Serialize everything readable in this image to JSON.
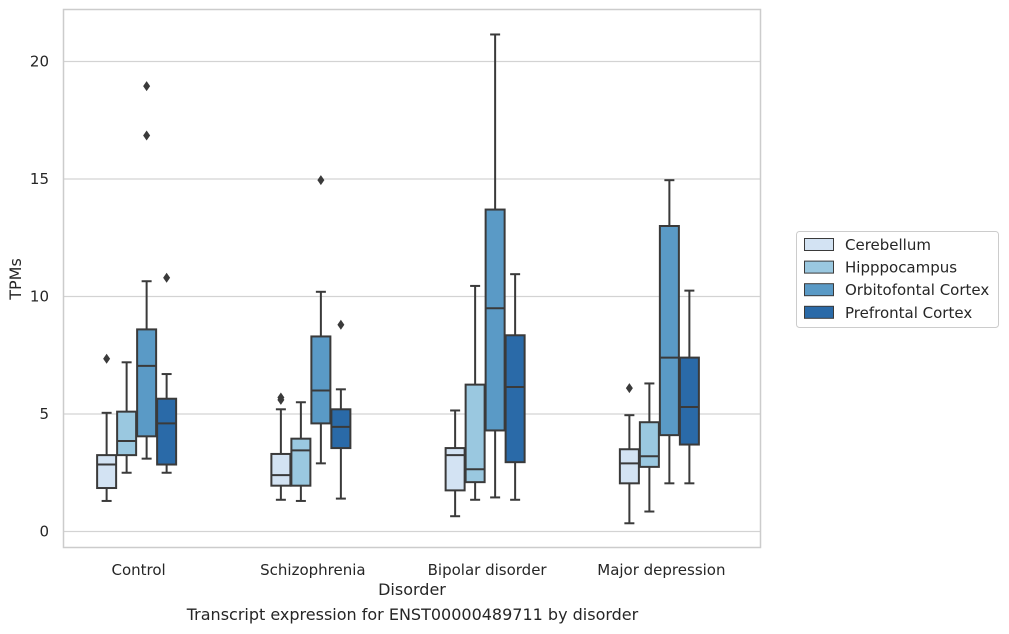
{
  "caption": "Transcript expression for ENST00000489711 by disorder",
  "chart_data": {
    "type": "boxplot",
    "xlabel": "Disorder",
    "ylabel": "TPMs",
    "ylim": [
      -0.7,
      22.3
    ],
    "yticks": [
      0,
      5,
      10,
      15,
      20
    ],
    "grid": "horizontal",
    "legend_position": "right",
    "categories": [
      "Control",
      "Schizophrenia",
      "Bipolar disorder",
      "Major depression"
    ],
    "series": [
      {
        "name": "Cerebellum",
        "color": "#d3e3f3",
        "boxes": [
          {
            "whislo": 1.3,
            "q1": 1.85,
            "med": 2.85,
            "q3": 3.25,
            "whishi": 5.05,
            "fliers": [
              7.35
            ]
          },
          {
            "whislo": 1.35,
            "q1": 1.95,
            "med": 2.4,
            "q3": 3.3,
            "whishi": 5.2,
            "fliers": [
              5.6,
              5.7
            ]
          },
          {
            "whislo": 0.65,
            "q1": 1.75,
            "med": 3.25,
            "q3": 3.55,
            "whishi": 5.15,
            "fliers": []
          },
          {
            "whislo": 0.35,
            "q1": 2.05,
            "med": 2.9,
            "q3": 3.5,
            "whishi": 4.95,
            "fliers": [
              6.1
            ]
          }
        ]
      },
      {
        "name": "Hipppocampus",
        "color": "#9ac8e0",
        "boxes": [
          {
            "whislo": 2.5,
            "q1": 3.25,
            "med": 3.85,
            "q3": 5.1,
            "whishi": 7.2,
            "fliers": []
          },
          {
            "whislo": 1.3,
            "q1": 1.95,
            "med": 3.45,
            "q3": 3.95,
            "whishi": 5.5,
            "fliers": []
          },
          {
            "whislo": 1.35,
            "q1": 2.1,
            "med": 2.65,
            "q3": 6.25,
            "whishi": 10.45,
            "fliers": []
          },
          {
            "whislo": 0.85,
            "q1": 2.75,
            "med": 3.2,
            "q3": 4.65,
            "whishi": 6.3,
            "fliers": []
          }
        ]
      },
      {
        "name": "Orbitofontal Cortex",
        "color": "#5a9ac6",
        "boxes": [
          {
            "whislo": 3.1,
            "q1": 4.05,
            "med": 7.05,
            "q3": 8.6,
            "whishi": 10.65,
            "fliers": [
              16.85,
              18.95
            ]
          },
          {
            "whislo": 2.9,
            "q1": 4.6,
            "med": 6.0,
            "q3": 8.3,
            "whishi": 10.2,
            "fliers": [
              14.95
            ]
          },
          {
            "whislo": 1.45,
            "q1": 4.3,
            "med": 9.5,
            "q3": 13.7,
            "whishi": 21.15,
            "fliers": []
          },
          {
            "whislo": 2.05,
            "q1": 4.1,
            "med": 7.4,
            "q3": 13.0,
            "whishi": 14.95,
            "fliers": []
          }
        ]
      },
      {
        "name": "Prefrontal Cortex",
        "color": "#2a6aa8",
        "boxes": [
          {
            "whislo": 2.5,
            "q1": 2.85,
            "med": 4.6,
            "q3": 5.65,
            "whishi": 6.7,
            "fliers": [
              10.8
            ]
          },
          {
            "whislo": 1.4,
            "q1": 3.55,
            "med": 4.45,
            "q3": 5.2,
            "whishi": 6.05,
            "fliers": [
              8.8
            ]
          },
          {
            "whislo": 1.35,
            "q1": 2.95,
            "med": 6.15,
            "q3": 8.35,
            "whishi": 10.95,
            "fliers": []
          },
          {
            "whislo": 2.05,
            "q1": 3.7,
            "med": 5.3,
            "q3": 7.4,
            "whishi": 10.25,
            "fliers": []
          }
        ]
      }
    ]
  }
}
